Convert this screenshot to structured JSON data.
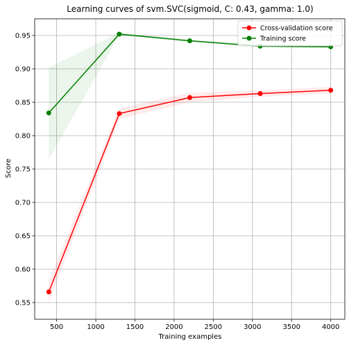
{
  "chart_data": {
    "type": "line",
    "title": "Learning curves of svm.SVC(sigmoid, C: 0.43, gamma: 1.0)",
    "xlabel": "Training examples",
    "ylabel": "Score",
    "xlim": [
      220,
      4180
    ],
    "ylim": [
      0.525,
      0.975
    ],
    "xticks": [
      500,
      1000,
      1500,
      2000,
      2500,
      3000,
      3500,
      4000
    ],
    "yticks": [
      0.55,
      0.6,
      0.65,
      0.7,
      0.75,
      0.8,
      0.85,
      0.9,
      0.95
    ],
    "grid": true,
    "legend_position": "top-right",
    "x": [
      400,
      1300,
      2200,
      3100,
      4000
    ],
    "series": [
      {
        "name": "Cross-validation score",
        "color": "#ff0000",
        "band_color": "#ff0000",
        "values": [
          0.566,
          0.833,
          0.857,
          0.863,
          0.868
        ],
        "band_low": [
          0.55,
          0.825,
          0.85,
          0.858,
          0.863
        ],
        "band_high": [
          0.582,
          0.841,
          0.864,
          0.868,
          0.873
        ]
      },
      {
        "name": "Training score",
        "color": "#008000",
        "band_color": "#008000",
        "values": [
          0.834,
          0.952,
          0.942,
          0.934,
          0.933
        ],
        "band_low": [
          0.765,
          0.95,
          0.94,
          0.932,
          0.931
        ],
        "band_high": [
          0.902,
          0.954,
          0.944,
          0.936,
          0.935
        ]
      }
    ]
  }
}
